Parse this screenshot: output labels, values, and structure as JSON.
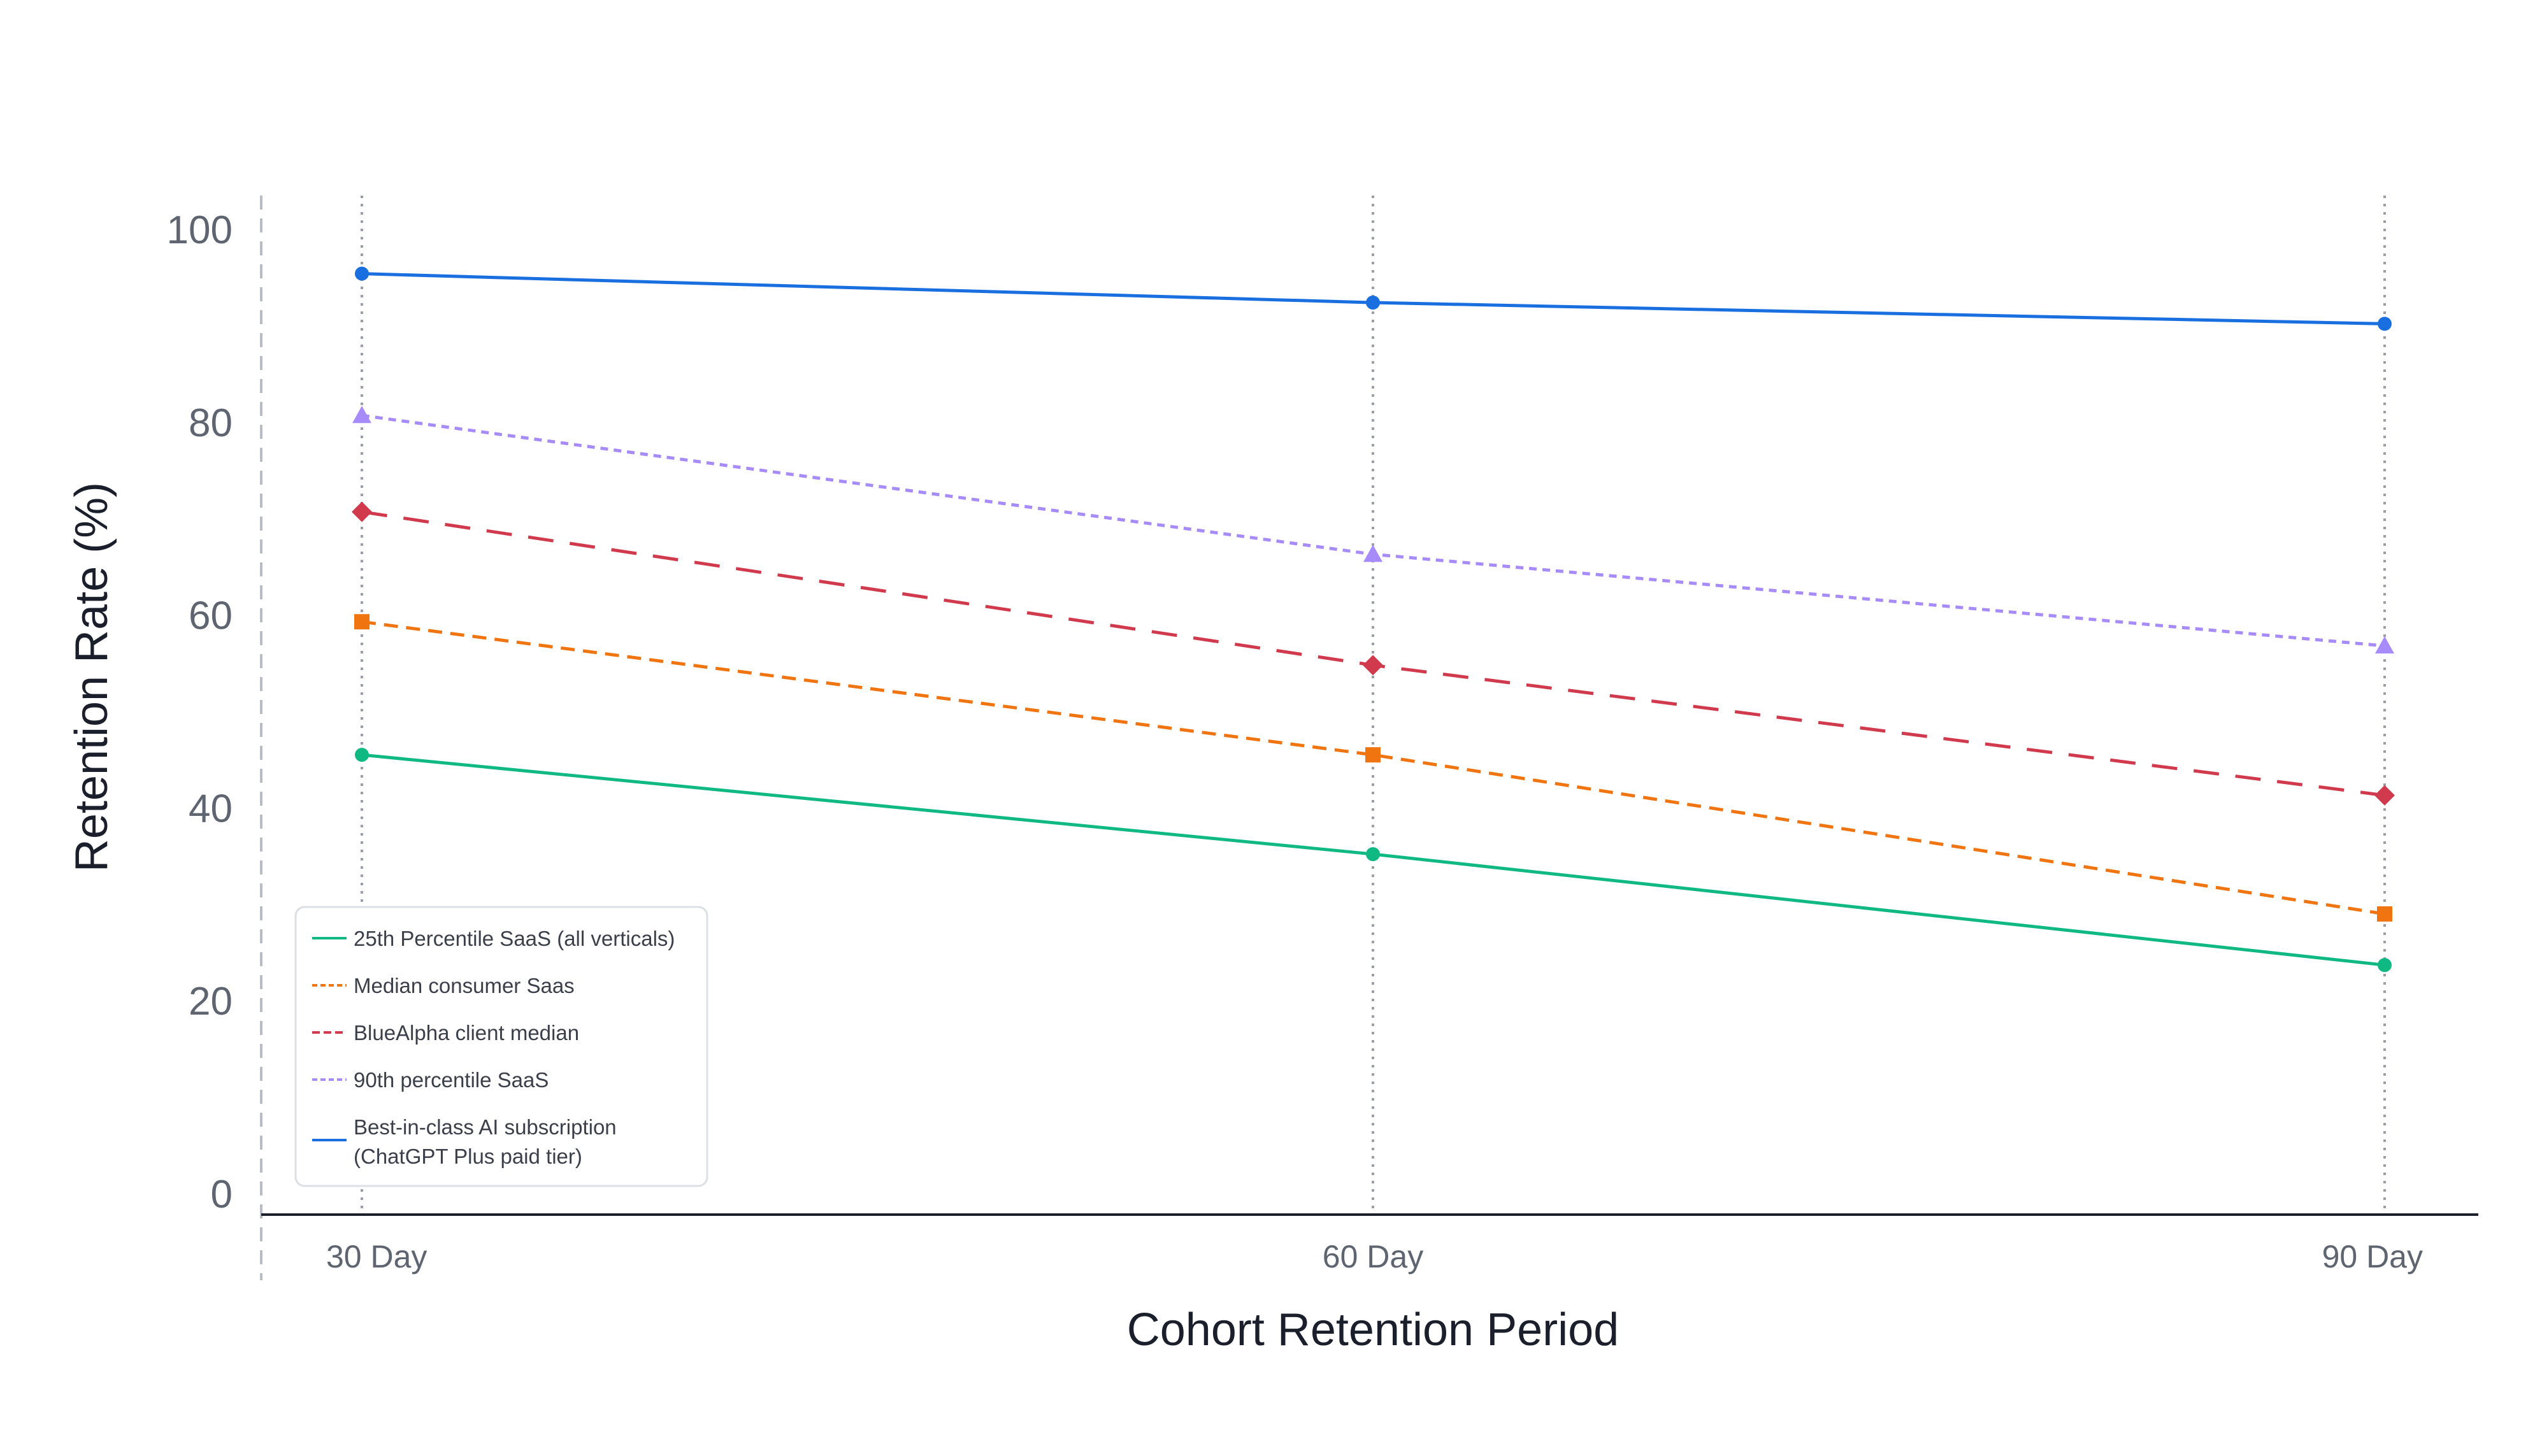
{
  "chart_data": {
    "type": "line",
    "title": "",
    "xlabel": "Cohort Retention Period",
    "ylabel": "Retention Rate (%)",
    "categories": [
      "30 Day",
      "60 Day",
      "90 Day"
    ],
    "ylim": [
      0,
      100
    ],
    "yticks": [
      "0",
      "20",
      "40",
      "60",
      "80",
      "100"
    ],
    "grid": "vertical dotted lines at categories",
    "legend_position": "bottom-left",
    "series": [
      {
        "name": "25th Percentile SaaS (all verticals)",
        "values": [
          45.5,
          35.2,
          23.7
        ],
        "color": "#10b981",
        "dash": "solid",
        "marker": "circle"
      },
      {
        "name": "Median consumer Saas",
        "values": [
          59.3,
          45.5,
          29.0
        ],
        "color": "#f07410",
        "dash": "dashed",
        "marker": "square"
      },
      {
        "name": "BlueAlpha client median",
        "values": [
          70.7,
          54.8,
          41.3
        ],
        "color": "#d03a4c",
        "dash": "longdash",
        "marker": "diamond"
      },
      {
        "name": "90th percentile SaaS",
        "values": [
          80.7,
          66.3,
          56.8
        ],
        "color": "#a78bfa",
        "dash": "dotted",
        "marker": "triangle"
      },
      {
        "name": "Best-in-class AI subscription (ChatGPT Plus paid tier)",
        "legend_lines": [
          "Best-in-class AI subscription",
          "(ChatGPT Plus paid tier)"
        ],
        "values": [
          95.4,
          92.4,
          90.2
        ],
        "color": "#1a6fe0",
        "dash": "solid",
        "marker": "circle"
      }
    ]
  }
}
